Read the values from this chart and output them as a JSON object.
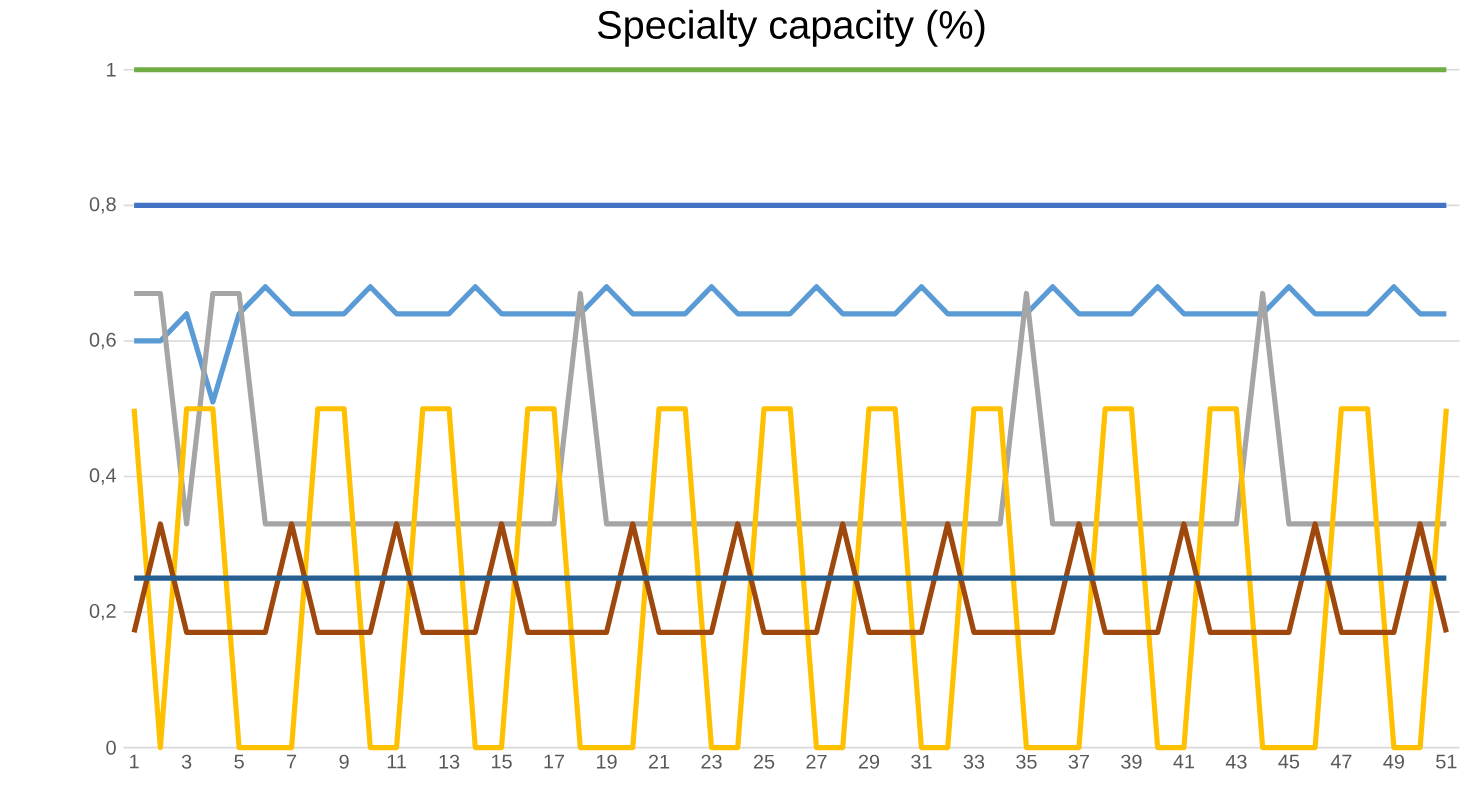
{
  "chart_data": {
    "type": "line",
    "title": "Specialty capacity (%)",
    "categories": [
      "1",
      null,
      "3",
      null,
      "5",
      null,
      "7",
      null,
      "9",
      null,
      "11",
      null,
      "13",
      null,
      "15",
      null,
      "17",
      null,
      "19",
      null,
      "21",
      null,
      "23",
      null,
      "25",
      null,
      "27",
      null,
      "29",
      null,
      "31",
      null,
      "33",
      null,
      "35",
      null,
      "37",
      null,
      "39",
      null,
      "41",
      null,
      "43",
      null,
      "45",
      null,
      "47",
      null,
      "49",
      null,
      "51"
    ],
    "ylim": [
      0,
      1
    ],
    "yticks": [
      0,
      {
        "value": 0.2,
        "label": "0,2"
      },
      {
        "value": 0.4,
        "label": "0,4"
      },
      {
        "value": 0.6,
        "label": "0,6"
      },
      {
        "value": 0.8,
        "label": "0,8"
      },
      1
    ],
    "grid": "y",
    "series": [
      {
        "color": "#70ad47",
        "values": [
          1,
          1,
          1,
          1,
          1,
          1,
          1,
          1,
          1,
          1,
          1,
          1,
          1,
          1,
          1,
          1,
          1,
          1,
          1,
          1,
          1,
          1,
          1,
          1,
          1,
          1,
          1,
          1,
          1,
          1,
          1,
          1,
          1,
          1,
          1,
          1,
          1,
          1,
          1,
          1,
          1,
          1,
          1,
          1,
          1,
          1,
          1,
          1,
          1,
          1,
          1
        ]
      },
      {
        "color": "#4472c4",
        "values": [
          0.8,
          0.8,
          0.8,
          0.8,
          0.8,
          0.8,
          0.8,
          0.8,
          0.8,
          0.8,
          0.8,
          0.8,
          0.8,
          0.8,
          0.8,
          0.8,
          0.8,
          0.8,
          0.8,
          0.8,
          0.8,
          0.8,
          0.8,
          0.8,
          0.8,
          0.8,
          0.8,
          0.8,
          0.8,
          0.8,
          0.8,
          0.8,
          0.8,
          0.8,
          0.8,
          0.8,
          0.8,
          0.8,
          0.8,
          0.8,
          0.8,
          0.8,
          0.8,
          0.8,
          0.8,
          0.8,
          0.8,
          0.8,
          0.8,
          0.8,
          0.8
        ]
      },
      {
        "color": "#5b9bd5",
        "values": [
          0.6,
          0.6,
          0.64,
          0.51,
          0.64,
          0.68,
          0.64,
          0.64,
          0.64,
          0.68,
          0.64,
          0.64,
          0.64,
          0.68,
          0.64,
          0.64,
          0.64,
          0.64,
          0.68,
          0.64,
          0.64,
          0.64,
          0.68,
          0.64,
          0.64,
          0.64,
          0.68,
          0.64,
          0.64,
          0.64,
          0.68,
          0.64,
          0.64,
          0.64,
          0.64,
          0.68,
          0.64,
          0.64,
          0.64,
          0.68,
          0.64,
          0.64,
          0.64,
          0.64,
          0.68,
          0.64,
          0.64,
          0.64,
          0.68,
          0.64,
          0.64
        ]
      },
      {
        "color": "#a5a5a5",
        "values": [
          0.67,
          0.67,
          0.33,
          0.67,
          0.67,
          0.33,
          0.33,
          0.33,
          0.33,
          0.33,
          0.33,
          0.33,
          0.33,
          0.33,
          0.33,
          0.33,
          0.33,
          0.67,
          0.33,
          0.33,
          0.33,
          0.33,
          0.33,
          0.33,
          0.33,
          0.33,
          0.33,
          0.33,
          0.33,
          0.33,
          0.33,
          0.33,
          0.33,
          0.33,
          0.67,
          0.33,
          0.33,
          0.33,
          0.33,
          0.33,
          0.33,
          0.33,
          0.33,
          0.67,
          0.33,
          0.33,
          0.33,
          0.33,
          0.33,
          0.33,
          0.33
        ]
      },
      {
        "color": "#ffc000",
        "values": [
          0.5,
          0,
          0.5,
          0.5,
          0,
          0,
          0,
          0.5,
          0.5,
          0,
          0,
          0.5,
          0.5,
          0,
          0,
          0.5,
          0.5,
          0,
          0,
          0,
          0.5,
          0.5,
          0,
          0,
          0.5,
          0.5,
          0,
          0,
          0.5,
          0.5,
          0,
          0,
          0.5,
          0.5,
          0,
          0,
          0,
          0.5,
          0.5,
          0,
          0,
          0.5,
          0.5,
          0,
          0,
          0,
          0.5,
          0.5,
          0,
          0,
          0.5
        ]
      },
      {
        "color": "#9e480e",
        "values": [
          0.17,
          0.33,
          0.17,
          0.17,
          0.17,
          0.17,
          0.33,
          0.17,
          0.17,
          0.17,
          0.33,
          0.17,
          0.17,
          0.17,
          0.33,
          0.17,
          0.17,
          0.17,
          0.17,
          0.33,
          0.17,
          0.17,
          0.17,
          0.33,
          0.17,
          0.17,
          0.17,
          0.33,
          0.17,
          0.17,
          0.17,
          0.33,
          0.17,
          0.17,
          0.17,
          0.17,
          0.33,
          0.17,
          0.17,
          0.17,
          0.33,
          0.17,
          0.17,
          0.17,
          0.17,
          0.33,
          0.17,
          0.17,
          0.17,
          0.33,
          0.17
        ]
      },
      {
        "color": "#255e91",
        "values": [
          0.25,
          0.25,
          0.25,
          0.25,
          0.25,
          0.25,
          0.25,
          0.25,
          0.25,
          0.25,
          0.25,
          0.25,
          0.25,
          0.25,
          0.25,
          0.25,
          0.25,
          0.25,
          0.25,
          0.25,
          0.25,
          0.25,
          0.25,
          0.25,
          0.25,
          0.25,
          0.25,
          0.25,
          0.25,
          0.25,
          0.25,
          0.25,
          0.25,
          0.25,
          0.25,
          0.25,
          0.25,
          0.25,
          0.25,
          0.25,
          0.25,
          0.25,
          0.25,
          0.25,
          0.25,
          0.25,
          0.25,
          0.25,
          0.25,
          0.25,
          0.25
        ]
      }
    ]
  }
}
